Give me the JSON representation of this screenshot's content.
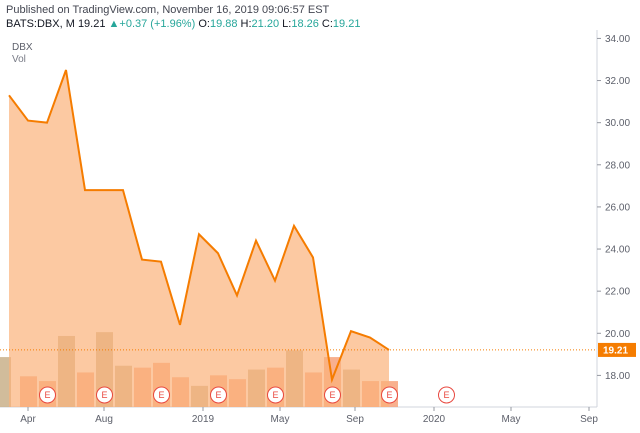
{
  "header": {
    "published": "Published on TradingView.com, November 16, 2019 09:06:57 EST",
    "symbol_line": "BATS:DBX, M",
    "last": "19.21",
    "change_arrow": "▲",
    "change": "+0.37 (+1.96%)",
    "o_label": "O:",
    "o_value": "19.88",
    "h_label": "H:",
    "h_value": "21.20",
    "l_label": "L:",
    "l_value": "18.26",
    "c_label": "C:",
    "c_value": "19.21"
  },
  "legend": {
    "symbol": "DBX",
    "volume": "Vol"
  },
  "colors": {
    "area_fill": "#fbb27a",
    "line": "#f57c00",
    "volume_up": "#c9b08a",
    "volume_down": "#f7a27a",
    "earnings": "#e8483f",
    "price_tag": "#f57c00"
  },
  "chart_data": {
    "type": "area",
    "title": "",
    "ylim": [
      16.5,
      34.4
    ],
    "y_ticks": [
      "18.00",
      "20.00",
      "22.00",
      "24.00",
      "26.00",
      "28.00",
      "30.00",
      "32.00",
      "34.00"
    ],
    "x_tick_labels": [
      "Apr",
      "Aug",
      "2019",
      "May",
      "Sep",
      "2020",
      "May",
      "Sep"
    ],
    "last_price_label": "19.21",
    "earnings_marker": "E",
    "series": [
      {
        "values": [
          31.3,
          30.1,
          30.0,
          32.5,
          26.8,
          26.8,
          26.8,
          23.5,
          23.4,
          20.4,
          24.7,
          23.8,
          21.8,
          24.4,
          22.5,
          25.1,
          23.6,
          17.8,
          20.1,
          19.8,
          19.21
        ]
      }
    ],
    "volume_relative": [
      0.52,
      0.32,
      0.27,
      0.74,
      0.36,
      0.78,
      0.43,
      0.41,
      0.46,
      0.31,
      0.22,
      0.33,
      0.29,
      0.39,
      0.41,
      0.59,
      0.36,
      0.52,
      0.39,
      0.27,
      0.27
    ],
    "volume_up": [
      false,
      true,
      true,
      false,
      true,
      false,
      false,
      true,
      true,
      true,
      false,
      true,
      true,
      false,
      true,
      false,
      true,
      true,
      false,
      true,
      true
    ],
    "earnings_index": [
      2,
      5,
      8,
      11,
      14,
      17,
      20,
      23
    ]
  }
}
